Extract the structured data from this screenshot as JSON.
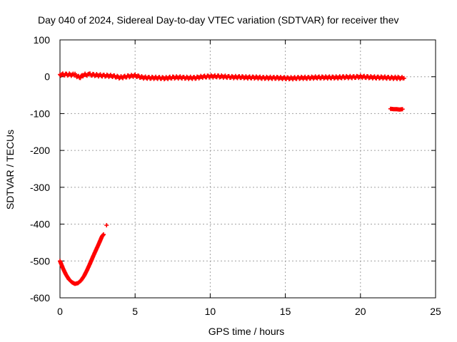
{
  "chart_data": {
    "type": "scatter",
    "title": "Day 040 of 2024, Sidereal Day-to-day VTEC variation (SDTVAR) for receiver thev",
    "xlabel": "GPS time / hours",
    "ylabel": "SDTVAR / TECUs",
    "xlim": [
      0,
      25
    ],
    "ylim": [
      -600,
      100
    ],
    "xticks": [
      0,
      5,
      10,
      15,
      20,
      25
    ],
    "yticks": [
      100,
      0,
      -100,
      -200,
      -300,
      -400,
      -500,
      -600
    ],
    "grid": true,
    "marker": "plus",
    "series": [
      {
        "name": "main band",
        "color": "#ff0000",
        "x": [
          0.0,
          0.5,
          1.0,
          1.3,
          1.6,
          2.0,
          2.5,
          3.0,
          3.5,
          4.0,
          4.5,
          5.0,
          5.5,
          6.0,
          6.5,
          7.0,
          7.5,
          8.0,
          8.5,
          9.0,
          9.5,
          10.0,
          10.5,
          11.0,
          11.5,
          12.0,
          12.5,
          13.0,
          13.5,
          14.0,
          14.5,
          15.0,
          15.5,
          16.0,
          16.5,
          17.0,
          17.5,
          18.0,
          18.5,
          19.0,
          19.5,
          20.0,
          20.5,
          21.0,
          21.5,
          22.0,
          22.5,
          22.9
        ],
        "y": [
          6,
          6,
          5,
          -2,
          5,
          6,
          4,
          3,
          2,
          -2,
          1,
          3,
          -2,
          -3,
          -3,
          -4,
          -2,
          -2,
          -3,
          -3,
          0,
          1,
          1,
          0,
          -1,
          -1,
          -2,
          -2,
          -3,
          -3,
          -3,
          -4,
          -4,
          -3,
          -3,
          -2,
          -2,
          -2,
          -2,
          -1,
          -1,
          0,
          -1,
          -2,
          -2,
          -3,
          -3,
          -4
        ]
      },
      {
        "name": "late offset segment",
        "color": "#ff0000",
        "x": [
          22.0,
          22.2,
          22.4,
          22.6,
          22.8
        ],
        "y": [
          -87,
          -88,
          -88,
          -89,
          -88
        ]
      },
      {
        "name": "early dip",
        "color": "#ff0000",
        "x": [
          0.0,
          0.2,
          0.4,
          0.6,
          0.8,
          1.0,
          1.2,
          1.4,
          1.6,
          1.8,
          2.0,
          2.2,
          2.4,
          2.6,
          2.8,
          2.9
        ],
        "y": [
          -500,
          -520,
          -537,
          -550,
          -558,
          -562,
          -560,
          -553,
          -541,
          -525,
          -507,
          -488,
          -470,
          -452,
          -433,
          -428
        ]
      },
      {
        "name": "isolated point",
        "color": "#ff0000",
        "x": [
          3.1
        ],
        "y": [
          -403
        ]
      }
    ]
  }
}
